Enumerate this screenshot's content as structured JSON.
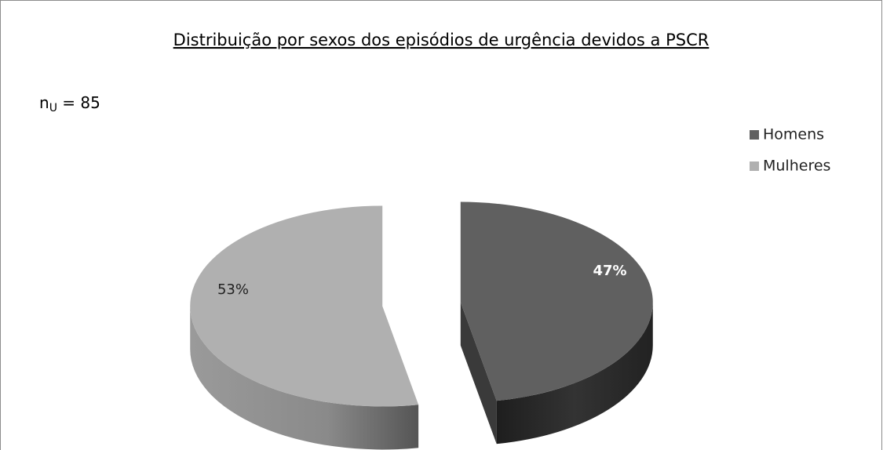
{
  "chart_data": {
    "type": "pie",
    "title": "Distribuição por sexos dos episódios de urgência devidos a PSCR",
    "annotation_parts": [
      "n",
      "U",
      " = 85"
    ],
    "categories": [
      "Homens",
      "Mulheres"
    ],
    "values": [
      47,
      53
    ],
    "value_labels": [
      "47%",
      "53%"
    ],
    "colors": [
      "#606060",
      "#b0b0b0"
    ],
    "legend": "right"
  }
}
